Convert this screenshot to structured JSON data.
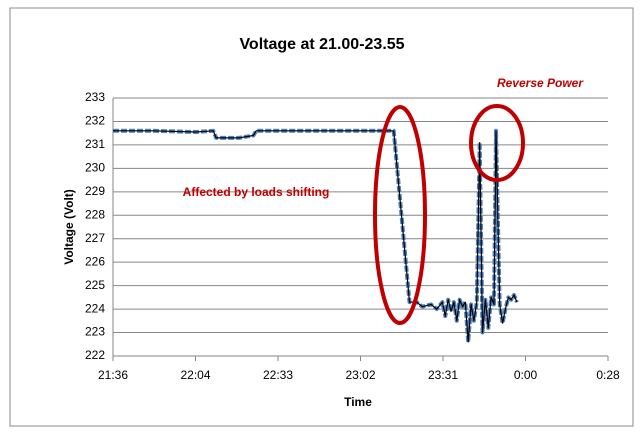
{
  "chart_data": {
    "type": "line",
    "title": "Voltage at 21.00-23.55",
    "x_label": "Time",
    "y_label": "Voltage (Volt)",
    "annotations": [
      "Affected by loads shifting",
      "Reverse Power"
    ],
    "x": [
      1296,
      1310,
      1325,
      1331,
      1332,
      1340,
      1345,
      1346,
      1394,
      1399.5,
      1402,
      1404,
      1407,
      1409,
      1411,
      1412,
      1413,
      1414,
      1415,
      1416,
      1417,
      1418,
      1419,
      1420,
      1421,
      1422,
      1423,
      1424,
      1425,
      1426,
      1427,
      1428,
      1429,
      1429.7,
      1431,
      1432,
      1433,
      1434,
      1435,
      1436,
      1437
    ],
    "series": [
      {
        "color": "#4f81bd",
        "values": [
          231.6,
          231.6,
          231.55,
          231.6,
          231.3,
          231.3,
          231.4,
          231.6,
          231.6,
          224.3,
          224.3,
          224.1,
          224.2,
          224.0,
          224.3,
          223.7,
          224.4,
          223.9,
          224.3,
          223.5,
          224.4,
          224.1,
          224.3,
          222.6,
          224.2,
          223.5,
          224.3,
          231.1,
          223.0,
          224.4,
          223.2,
          224.5,
          224.2,
          231.6,
          224.2,
          223.4,
          224.0,
          224.5,
          224.4,
          224.6,
          224.3
        ]
      }
    ],
    "xlim": [
      1296,
      1468.8
    ],
    "xticks": [
      {
        "value": 1296,
        "label": "21:36"
      },
      {
        "value": 1324.8,
        "label": "22:04"
      },
      {
        "value": 1353.6,
        "label": "22:33"
      },
      {
        "value": 1382.4,
        "label": "23:02"
      },
      {
        "value": 1411.2,
        "label": "23:31"
      },
      {
        "value": 1440,
        "label": "0:00"
      },
      {
        "value": 1468.8,
        "label": "0:28"
      }
    ],
    "ylim": [
      222,
      233
    ],
    "yticks": [
      222,
      223,
      224,
      225,
      226,
      227,
      228,
      229,
      230,
      231,
      232,
      233
    ],
    "grid": true
  }
}
